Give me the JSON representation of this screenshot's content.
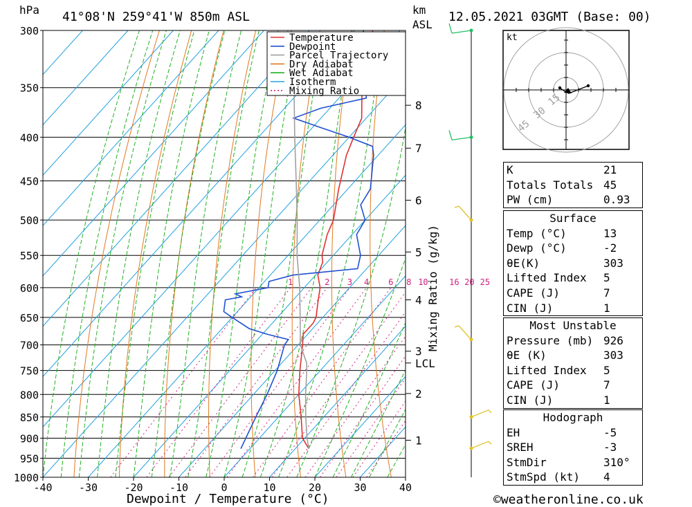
{
  "header": {
    "unit_hpa": "hPa",
    "location": "41°08'N  259°41'W  850m  ASL",
    "unit_km": "km",
    "unit_asl": "ASL",
    "datetime": "12.05.2021  03GMT  (Base: 00)"
  },
  "chart_data": {
    "type": "line",
    "title": "41°08'N  259°41'W  850m  ASL",
    "xlabel": "Dewpoint / Temperature (°C)",
    "ylabel": "hPa",
    "xlim": [
      -40,
      40
    ],
    "ylim": [
      1000,
      300
    ],
    "y_scale": "log-pressure",
    "skew": "skew-T",
    "x_ticks": [
      "-40",
      "-30",
      "-20",
      "-10",
      "0",
      "10",
      "20",
      "30",
      "40"
    ],
    "pressure_levels": [
      300,
      350,
      400,
      450,
      500,
      550,
      600,
      650,
      700,
      750,
      800,
      850,
      900,
      950,
      1000
    ],
    "height_km_ticks": [
      {
        "label": "8",
        "p": 367
      },
      {
        "label": "7",
        "p": 412
      },
      {
        "label": "6",
        "p": 474
      },
      {
        "label": "5",
        "p": 545
      },
      {
        "label": "4",
        "p": 620
      },
      {
        "label": "3",
        "p": 712
      },
      {
        "label": "LCL",
        "p": 735
      },
      {
        "label": "2",
        "p": 798
      },
      {
        "label": "1",
        "p": 905
      }
    ],
    "mixing_ratio_label": "Mixing Ratio (g/kg)",
    "mixing_ratio_values": [
      "1",
      "2",
      "3",
      "4",
      "6",
      "8",
      "10",
      "16",
      "20",
      "25"
    ],
    "legend": [
      "Temperature",
      "Dewpoint",
      "Parcel Trajectory",
      "Dry Adiabat",
      "Wet Adiabat",
      "Isotherm",
      "Mixing Ratio"
    ],
    "legend_placement": "top-right",
    "series": [
      {
        "name": "Temperature",
        "color": "#e03030",
        "p": [
          926,
          900,
          850,
          800,
          750,
          700,
          680,
          660,
          650,
          620,
          600,
          580,
          560,
          550,
          520,
          500,
          460,
          420,
          400,
          380,
          350,
          330,
          310,
          300
        ],
        "t": [
          13,
          9.5,
          5,
          0,
          -4.5,
          -9,
          -11,
          -11,
          -11.5,
          -14.5,
          -16.5,
          -19.5,
          -21,
          -22.5,
          -25.5,
          -27,
          -32,
          -37,
          -39,
          -41,
          -47,
          -51,
          -54,
          -56
        ]
      },
      {
        "name": "Dewpoint",
        "color": "#2050d0",
        "p": [
          926,
          900,
          850,
          800,
          750,
          700,
          690,
          680,
          670,
          650,
          640,
          620,
          615,
          610,
          600,
          590,
          580,
          570,
          560,
          550,
          520,
          500,
          480,
          460,
          420,
          410,
          400,
          390,
          380,
          370,
          360,
          350,
          340,
          330,
          320,
          300
        ],
        "t": [
          -2,
          -3,
          -5,
          -7,
          -9.5,
          -13,
          -13.2,
          -19,
          -24,
          -30,
          -33,
          -35,
          -32,
          -34,
          -28,
          -29,
          -25,
          -12,
          -13,
          -14,
          -19,
          -20,
          -24,
          -25,
          -31,
          -33,
          -40,
          -48,
          -56,
          -52,
          -44,
          -46,
          -52,
          -54,
          -55,
          -58
        ]
      },
      {
        "name": "Parcel Trajectory",
        "color": "#a0a0a0",
        "p": [
          926,
          900,
          850,
          800,
          750,
          735,
          700,
          650,
          600,
          550,
          500,
          450,
          400,
          350,
          300
        ],
        "t": [
          13,
          10.5,
          6,
          1.5,
          -3,
          -4.5,
          -9.5,
          -15,
          -21,
          -28,
          -35,
          -43,
          -52,
          -62,
          -74
        ]
      }
    ],
    "wind_barbs_p": [
      300,
      400,
      500,
      690,
      850,
      925
    ]
  },
  "hodograph": {
    "unit": "kt",
    "ring_labels": [
      "15",
      "30",
      "45"
    ]
  },
  "indices": {
    "k_label": "K",
    "k_value": "21",
    "tt_label": "Totals Totals",
    "tt_value": "45",
    "pw_label": "PW (cm)",
    "pw_value": "0.93"
  },
  "surface": {
    "title": "Surface",
    "rows": [
      {
        "label": "Temp (°C)",
        "value": "13"
      },
      {
        "label": "Dewp (°C)",
        "value": "-2"
      },
      {
        "label": "θE(K)",
        "value": "303"
      },
      {
        "label": "Lifted Index",
        "value": "5"
      },
      {
        "label": "CAPE (J)",
        "value": "7"
      },
      {
        "label": "CIN (J)",
        "value": "1"
      }
    ]
  },
  "most_unstable": {
    "title": "Most Unstable",
    "rows": [
      {
        "label": "Pressure (mb)",
        "value": "926"
      },
      {
        "label": "θE (K)",
        "value": "303"
      },
      {
        "label": "Lifted Index",
        "value": "5"
      },
      {
        "label": "CAPE (J)",
        "value": "7"
      },
      {
        "label": "CIN (J)",
        "value": "1"
      }
    ]
  },
  "hodograph_stats": {
    "title": "Hodograph",
    "rows": [
      {
        "label": "EH",
        "value": "-5"
      },
      {
        "label": "SREH",
        "value": "-3"
      },
      {
        "label": "StmDir",
        "value": "310°"
      },
      {
        "label": "StmSpd (kt)",
        "value": "4"
      }
    ]
  },
  "footer": {
    "credit": "©weatheronline.co.uk"
  },
  "colors": {
    "temperature": "#e03030",
    "dewpoint": "#2050d0",
    "parcel": "#a0a0a0",
    "dry_adiabat": "#e07820",
    "wet_adiabat": "#20b020",
    "isotherm": "#20a0e0",
    "mixing_ratio": "#d02080"
  }
}
